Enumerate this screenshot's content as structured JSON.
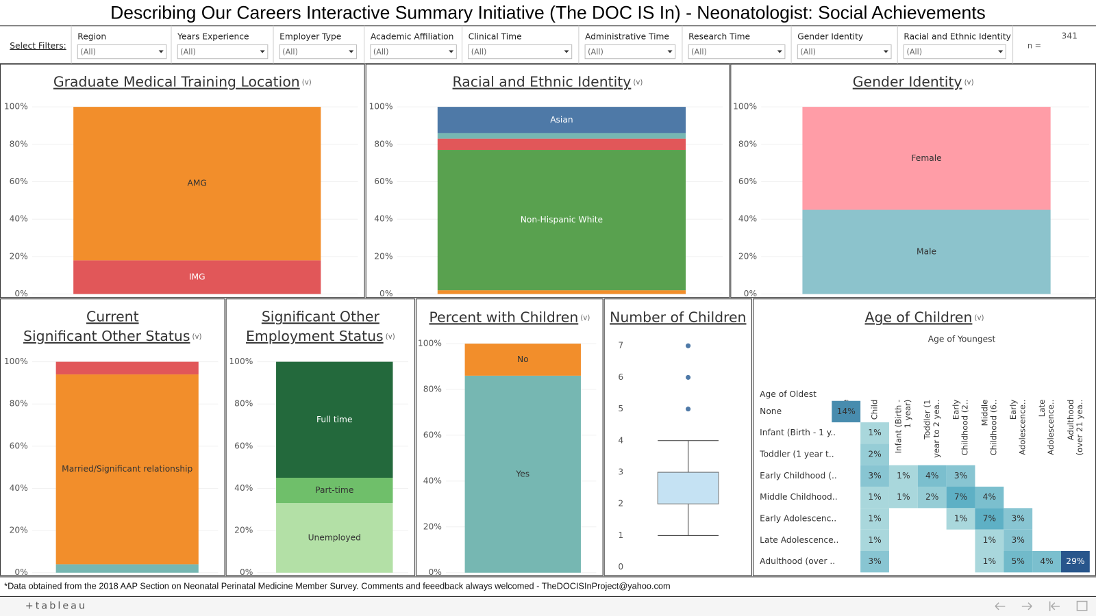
{
  "header": {
    "title": "Describing Our Careers Interactive Summary Initiative (The DOC IS In) - Neonatologist: Social Achievements"
  },
  "filters": {
    "label": "Select Filters:",
    "items": [
      {
        "label": "Region",
        "value": "(All)"
      },
      {
        "label": "Years Experience",
        "value": "(All)"
      },
      {
        "label": "Employer Type",
        "value": "(All)"
      },
      {
        "label": "Academic Affiliation",
        "value": "(All)"
      },
      {
        "label": "Clinical Time",
        "value": "(All)"
      },
      {
        "label": "Administrative Time",
        "value": "(All)"
      },
      {
        "label": "Research Time",
        "value": "(All)"
      },
      {
        "label": "Gender Identity",
        "value": "(All)"
      },
      {
        "label": "Racial and Ethnic Identity",
        "value": "(All)"
      }
    ],
    "n_label": "n =",
    "n_value": 341
  },
  "chart_data": [
    {
      "type": "stacked_bar",
      "title": [
        "Graduate Medical Training Location"
      ],
      "title_note": "(v)",
      "series": [
        {
          "name": "IMG",
          "color": "#e15759",
          "values": [
            18
          ]
        },
        {
          "name": "AMG",
          "color": "#f28e2b",
          "values": [
            82
          ]
        }
      ],
      "ylim": [
        0,
        100
      ],
      "grid": true,
      "yticks": [
        {
          "value": 0,
          "label": "0%"
        },
        {
          "value": 20,
          "label": "20%"
        },
        {
          "value": 40,
          "label": "40%"
        },
        {
          "value": 60,
          "label": "60%"
        },
        {
          "value": 80,
          "label": "80%"
        },
        {
          "value": 100,
          "label": "100%"
        }
      ]
    },
    {
      "type": "stacked_bar",
      "title": [
        "Racial and Ethnic Identity"
      ],
      "title_note": "(v)",
      "series": [
        {
          "name": null,
          "color": "#f28e2b",
          "values": [
            2
          ]
        },
        {
          "name": "Non-Hispanic White",
          "color": "#59a14f",
          "values": [
            75
          ]
        },
        {
          "name": null,
          "color": "#e15759",
          "values": [
            6
          ]
        },
        {
          "name": null,
          "color": "#76b7b2",
          "values": [
            3
          ]
        },
        {
          "name": "Asian",
          "color": "#4e79a7",
          "values": [
            14
          ]
        }
      ],
      "ylim": [
        0,
        100
      ],
      "grid": true,
      "yticks": [
        {
          "value": 0,
          "label": "0%"
        },
        {
          "value": 20,
          "label": "20%"
        },
        {
          "value": 40,
          "label": "40%"
        },
        {
          "value": 60,
          "label": "60%"
        },
        {
          "value": 80,
          "label": "80%"
        },
        {
          "value": 100,
          "label": "100%"
        }
      ]
    },
    {
      "type": "stacked_bar",
      "title": [
        "Gender Identity"
      ],
      "title_note": "(v)",
      "series": [
        {
          "name": "Male",
          "color": "#8cc3cc",
          "values": [
            45
          ]
        },
        {
          "name": "Female",
          "color": "#ff9da7",
          "values": [
            55
          ]
        }
      ],
      "ylim": [
        0,
        100
      ],
      "grid": true,
      "yticks": [
        {
          "value": 0,
          "label": "0%"
        },
        {
          "value": 20,
          "label": "20%"
        },
        {
          "value": 40,
          "label": "40%"
        },
        {
          "value": 60,
          "label": "60%"
        },
        {
          "value": 80,
          "label": "80%"
        },
        {
          "value": 100,
          "label": "100%"
        }
      ]
    },
    {
      "type": "stacked_bar",
      "title": [
        "Current",
        "Significant Other Status"
      ],
      "title_note": "(v)",
      "series": [
        {
          "name": null,
          "color": "#76b7b2",
          "values": [
            4
          ]
        },
        {
          "name": "Married/Significant relationship",
          "color": "#f28e2b",
          "values": [
            90
          ]
        },
        {
          "name": null,
          "color": "#e15759",
          "values": [
            6
          ]
        }
      ],
      "ylim": [
        0,
        100
      ],
      "grid": true,
      "yticks": [
        {
          "value": 0,
          "label": "0%"
        },
        {
          "value": 20,
          "label": "20%"
        },
        {
          "value": 40,
          "label": "40%"
        },
        {
          "value": 60,
          "label": "60%"
        },
        {
          "value": 80,
          "label": "80%"
        },
        {
          "value": 100,
          "label": "100%"
        }
      ]
    },
    {
      "type": "stacked_bar",
      "title": [
        "Significant Other",
        "Employment Status"
      ],
      "title_note": "(v)",
      "series": [
        {
          "name": "Unemployed",
          "color": "#b3e0a6",
          "values": [
            33
          ]
        },
        {
          "name": "Part-time",
          "color": "#6fbf6a",
          "values": [
            12
          ]
        },
        {
          "name": "Full time",
          "color": "#23693c",
          "values": [
            55
          ]
        }
      ],
      "ylim": [
        0,
        100
      ],
      "grid": true,
      "yticks": [
        {
          "value": 0,
          "label": "0%"
        },
        {
          "value": 20,
          "label": "20%"
        },
        {
          "value": 40,
          "label": "40%"
        },
        {
          "value": 60,
          "label": "60%"
        },
        {
          "value": 80,
          "label": "80%"
        },
        {
          "value": 100,
          "label": "100%"
        }
      ]
    },
    {
      "type": "stacked_bar",
      "title": [
        "Percent with Children"
      ],
      "title_note": "(v)",
      "series": [
        {
          "name": "Yes",
          "color": "#76b7b2",
          "values": [
            86
          ]
        },
        {
          "name": "No",
          "color": "#f28e2b",
          "values": [
            14
          ]
        }
      ],
      "ylim": [
        0,
        100
      ],
      "grid": true,
      "yticks": [
        {
          "value": 0,
          "label": "0%"
        },
        {
          "value": 20,
          "label": "20%"
        },
        {
          "value": 40,
          "label": "40%"
        },
        {
          "value": 60,
          "label": "60%"
        },
        {
          "value": 80,
          "label": "80%"
        },
        {
          "value": 100,
          "label": "100%"
        }
      ]
    },
    {
      "type": "box",
      "title": [
        "Number of Children"
      ],
      "color": "#c5e2f3",
      "point_color": "#4e79a7",
      "stats": {
        "whisker_low": 1,
        "q1": 2,
        "median": 3,
        "q3": 3,
        "whisker_high": 4
      },
      "outliers": [
        5,
        6,
        7
      ],
      "ylim": [
        0,
        7.4
      ],
      "yticks": [
        0,
        1,
        2,
        3,
        4,
        5,
        6,
        7
      ],
      "grid": false
    },
    {
      "type": "heatmap",
      "title": [
        "Age of Children"
      ],
      "title_note": "(v)",
      "x_label": "Age of Youngest",
      "y_label": "Age of Oldest",
      "x_categories": [
        [
          "None"
        ],
        [
          "One Child"
        ],
        [
          "Infant (Birth -",
          "1 year)"
        ],
        [
          "Toddler (1",
          "year to 2 yea.."
        ],
        [
          "Early",
          "Childhood (2.."
        ],
        [
          "Middle",
          "Childhood (6.."
        ],
        [
          "Early",
          "Adolescence.."
        ],
        [
          "Late",
          "Adolescence.."
        ],
        [
          "Adulthood",
          "(over 21 yea.."
        ]
      ],
      "y_categories": [
        "None",
        "Infant (Birth - 1 y..",
        "Toddler (1 year t..",
        "Early Childhood (..",
        "Middle Childhood..",
        "Early Adolescenc..",
        "Late Adolescence..",
        "Adulthood (over .."
      ],
      "values": [
        [
          14,
          null,
          null,
          null,
          null,
          null,
          null,
          null,
          null
        ],
        [
          null,
          1,
          null,
          null,
          null,
          null,
          null,
          null,
          null
        ],
        [
          null,
          2,
          null,
          null,
          null,
          null,
          null,
          null,
          null
        ],
        [
          null,
          3,
          1,
          4,
          3,
          null,
          null,
          null,
          null
        ],
        [
          null,
          1,
          1,
          2,
          7,
          4,
          null,
          null,
          null
        ],
        [
          null,
          1,
          null,
          null,
          1,
          7,
          3,
          null,
          null
        ],
        [
          null,
          1,
          null,
          null,
          null,
          1,
          3,
          null,
          null
        ],
        [
          null,
          3,
          null,
          null,
          null,
          1,
          5,
          4,
          29
        ]
      ],
      "value_labels": [
        [
          "14%",
          null,
          null,
          null,
          null,
          null,
          null,
          null,
          null
        ],
        [
          null,
          "1%",
          null,
          null,
          null,
          null,
          null,
          null,
          null
        ],
        [
          null,
          "2%",
          null,
          null,
          null,
          null,
          null,
          null,
          null
        ],
        [
          null,
          "3%",
          "1%",
          "4%",
          "3%",
          null,
          null,
          null,
          null
        ],
        [
          null,
          "1%",
          "1%",
          "2%",
          "7%",
          "4%",
          null,
          null,
          null
        ],
        [
          null,
          "1%",
          null,
          null,
          "1%",
          "7%",
          "3%",
          null,
          null
        ],
        [
          null,
          "1%",
          null,
          null,
          null,
          "1%",
          "3%",
          null,
          null
        ],
        [
          null,
          "3%",
          null,
          null,
          null,
          "1%",
          "5%",
          "4%",
          "29%"
        ]
      ]
    }
  ],
  "footer": {
    "note": "*Data obtained from the 2018 AAP Section on Neonatal Perinatal Medicine Member Survey.  Comments and feeedback always welcomed - TheDOCISInProject@yahoo.com",
    "brand": "+tableau"
  }
}
